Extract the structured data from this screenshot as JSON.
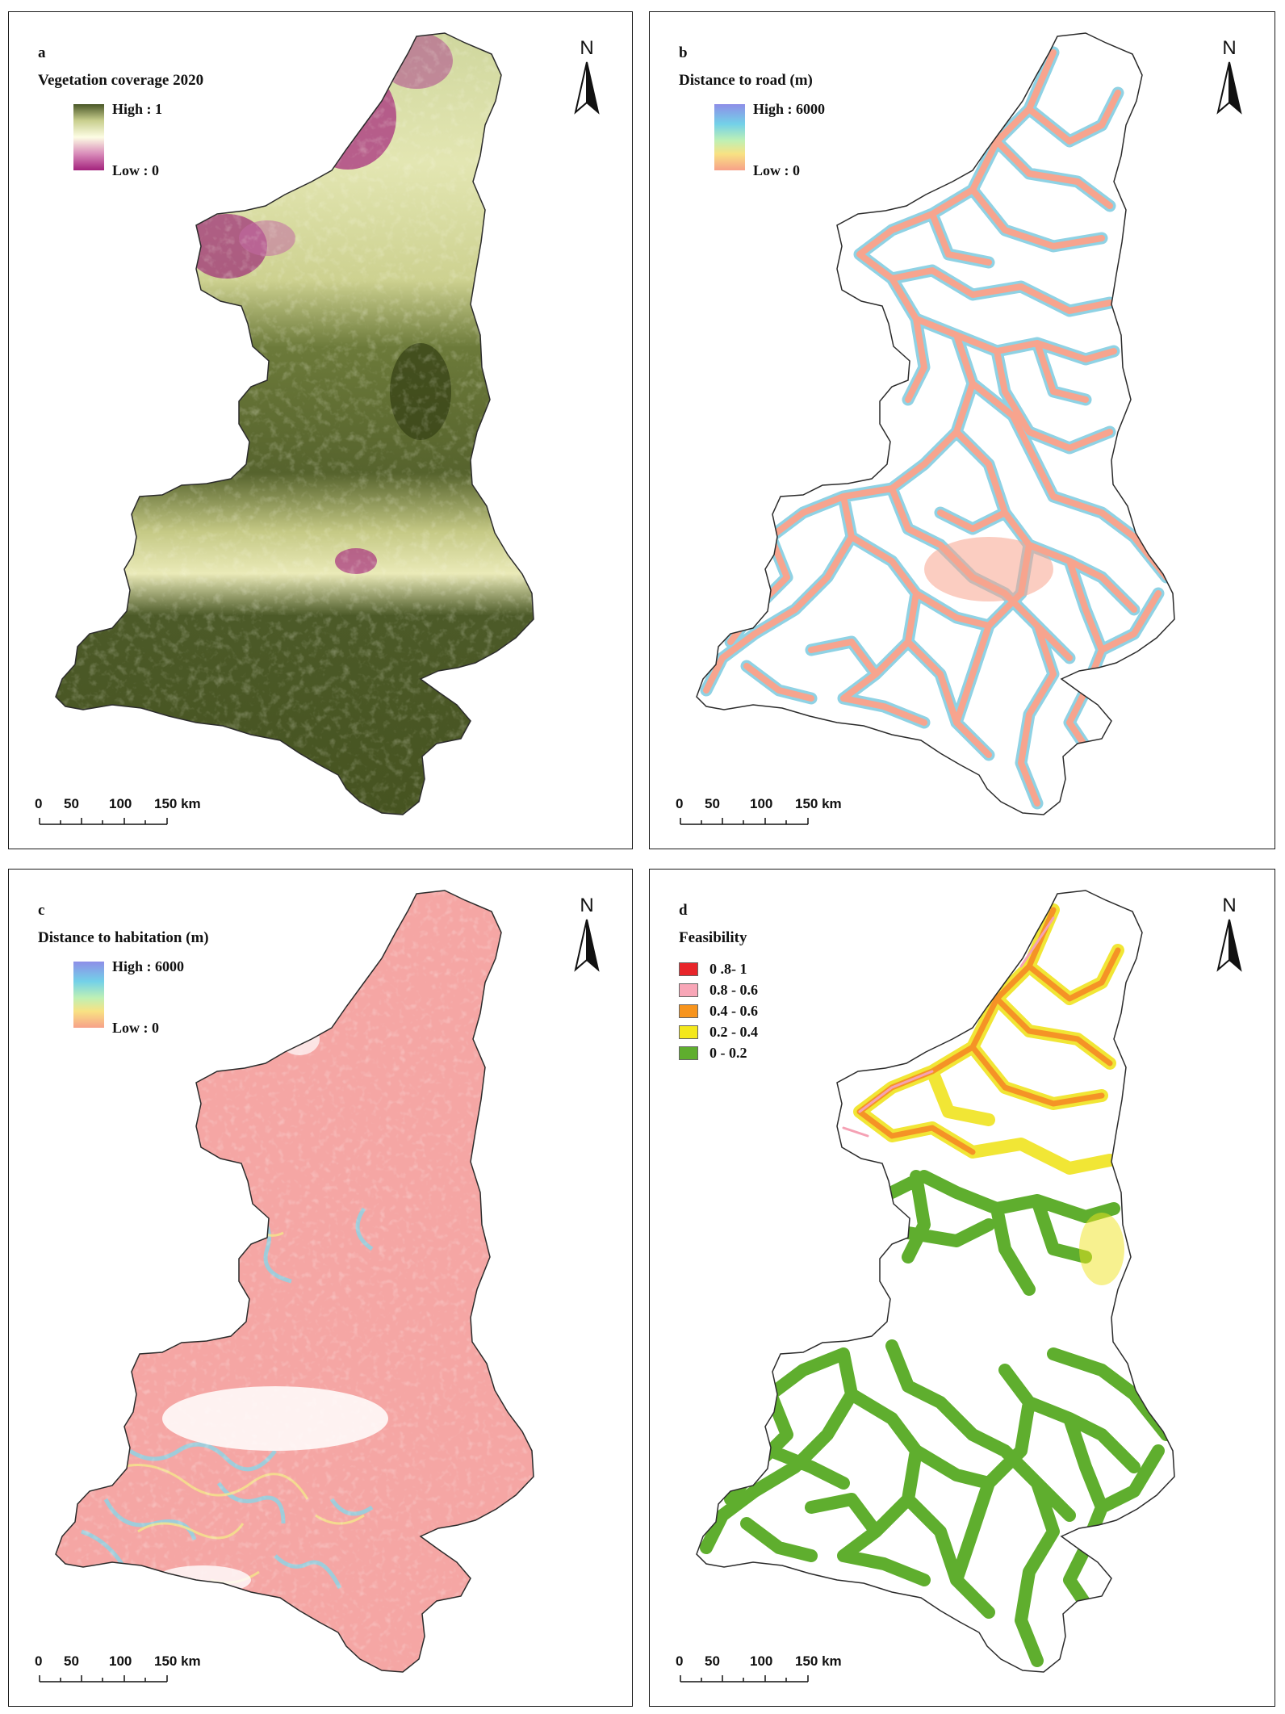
{
  "panels": {
    "a": {
      "letter": "a",
      "title": "Vegetation coverage 2020",
      "high_label": "High : 1",
      "low_label": "Low : 0",
      "ramp_colors": [
        "#4a5727",
        "#c9cf8e",
        "#fdfde4",
        "#d98cba",
        "#a3237c"
      ]
    },
    "b": {
      "letter": "b",
      "title": "Distance to road (m)",
      "high_label": "High : 6000",
      "low_label": "Low : 0",
      "ramp_colors": [
        "#8e8ee8",
        "#73d1e8",
        "#bff0b4",
        "#f8e283",
        "#f7a189"
      ]
    },
    "c": {
      "letter": "c",
      "title": "Distance to habitation (m)",
      "high_label": "High : 6000",
      "low_label": "Low : 0",
      "ramp_colors": [
        "#8e8ee8",
        "#73d1e8",
        "#bff0b4",
        "#f8e283",
        "#f7a189"
      ]
    },
    "d": {
      "letter": "d",
      "title": "Feasibility",
      "classes": [
        {
          "label": "0 .8- 1",
          "color": "#e8252a"
        },
        {
          "label": "0.8 - 0.6",
          "color": "#f8a6b7"
        },
        {
          "label": "0.4 - 0.6",
          "color": "#f7941d"
        },
        {
          "label": "0.2 - 0.4",
          "color": "#f4e81c"
        },
        {
          "label": "0 - 0.2",
          "color": "#5fae2e"
        }
      ]
    }
  },
  "north_label": "N",
  "scale": {
    "ticks": [
      "0",
      "50",
      "100",
      "150 km"
    ]
  },
  "colors": {
    "veg_dense": "#4c5a28",
    "veg_mid": "#b9c283",
    "veg_light": "#eef0c4",
    "veg_low": "#a8307f",
    "road_core": "#f7a48e",
    "road_halo": "#8fd2e4",
    "hab_fill": "#f5a6a4",
    "feas_green": "#5fae2e",
    "feas_yellow": "#f0e31f",
    "feas_orange": "#f59326",
    "feas_pink": "#f5a1b4",
    "outline": "#2b2b2b"
  }
}
